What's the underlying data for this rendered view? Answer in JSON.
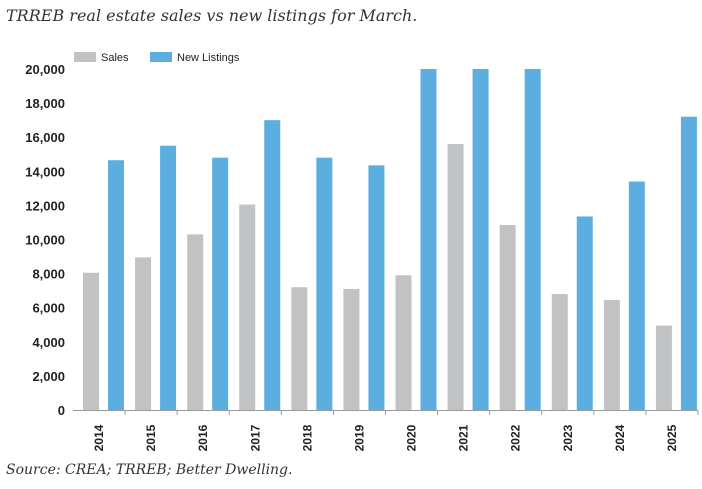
{
  "title": "TRREB real estate sales vs new listings for March.",
  "source": "Source: CREA; TRREB; Better Dwelling.",
  "colors": {
    "sales": "#c0c2c4",
    "new_listings": "#5daee0",
    "axis": "#9a9a9a"
  },
  "chart_data": {
    "type": "bar",
    "title": "TRREB real estate sales vs new listings for March.",
    "categories": [
      "2014",
      "2015",
      "2016",
      "2017",
      "2018",
      "2019",
      "2020",
      "2021",
      "2022",
      "2023",
      "2024",
      "2025"
    ],
    "series": [
      {
        "name": "Sales",
        "values": [
          8050,
          8950,
          10300,
          12050,
          7200,
          7100,
          7900,
          15600,
          10850,
          6800,
          6450,
          4950
        ]
      },
      {
        "name": "New Listings",
        "values": [
          14650,
          15500,
          14800,
          17000,
          14800,
          14350,
          20000,
          20000,
          20000,
          11350,
          13400,
          17200
        ]
      }
    ],
    "ylim": [
      0,
      20000
    ],
    "yticks": [
      "0",
      "2,000",
      "4,000",
      "6,000",
      "8,000",
      "10,000",
      "12,000",
      "14,000",
      "16,000",
      "18,000",
      "20,000"
    ],
    "xlabel": "",
    "ylabel": "",
    "legend": "top-left",
    "grid": false
  }
}
